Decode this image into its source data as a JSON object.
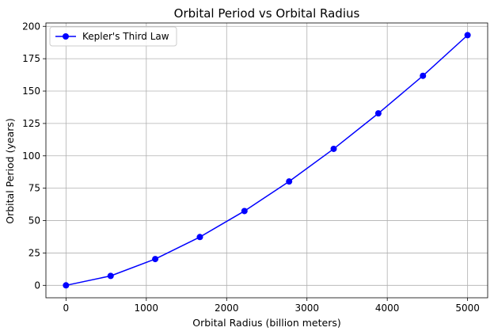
{
  "chart_data": {
    "type": "line",
    "title": "Orbital Period vs Orbital Radius",
    "xlabel": "Orbital Radius (billion meters)",
    "ylabel": "Orbital Period (years)",
    "xlim": [
      -250,
      5250
    ],
    "ylim": [
      -9.6,
      202.6
    ],
    "xticks": [
      0,
      1000,
      2000,
      3000,
      4000,
      5000
    ],
    "yticks": [
      0,
      25,
      50,
      75,
      100,
      125,
      150,
      175,
      200
    ],
    "grid": true,
    "legend_position": "top-left",
    "series": [
      {
        "name": "Kepler's Third Law",
        "color": "#0000ff",
        "marker": "circle",
        "x": [
          0,
          556,
          1111,
          1667,
          2222,
          2778,
          3333,
          3889,
          4444,
          5000
        ],
        "y": [
          0,
          7.3,
          20.3,
          37.3,
          57.4,
          80.2,
          105.4,
          132.8,
          161.8,
          193.2
        ]
      }
    ]
  }
}
